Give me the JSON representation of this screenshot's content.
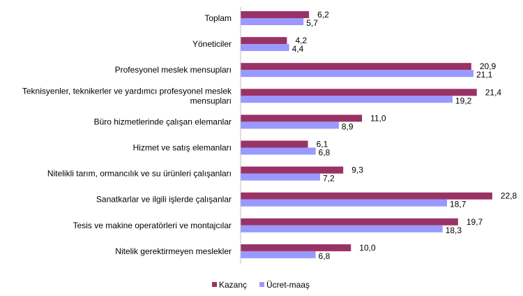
{
  "chart_data": {
    "type": "bar",
    "orientation": "horizontal",
    "categories": [
      "Toplam",
      "Yöneticiler",
      "Profesyonel meslek mensupları",
      "Teknisyenler, teknikerler ve yardımcı profesyonel meslek mensupları",
      "Büro hizmetlerinde çalışan elemanlar",
      "Hizmet ve satış elemanları",
      "Nitelikli tarım, ormancılık ve su ürünleri çalışanları",
      "Sanatkarlar ve ilgili işlerde çalışanlar",
      "Tesis ve makine operatörleri ve montajcılar",
      "Nitelik gerektirmeyen meslekler"
    ],
    "category_lines": {
      "3": [
        "Teknisyenler, teknikerler ve yardımcı profesyonel meslek",
        "mensupları"
      ]
    },
    "series": [
      {
        "name": "Kazanç",
        "color": "#993366",
        "values": [
          6.2,
          4.2,
          20.9,
          21.4,
          11.0,
          6.1,
          9.3,
          22.8,
          19.7,
          10.0
        ],
        "labels": [
          "6,2",
          "4,2",
          "20,9",
          "21,4",
          "11,0",
          "6,1",
          "9,3",
          "22,8",
          "19,7",
          "10,0"
        ]
      },
      {
        "name": "Ücret-maaş",
        "color": "#9999FF",
        "values": [
          5.7,
          4.4,
          21.1,
          19.2,
          8.9,
          6.8,
          7.2,
          18.7,
          18.3,
          6.8
        ],
        "labels": [
          "5,7",
          "4,4",
          "21,1",
          "19,2",
          "8,9",
          "6,8",
          "7,2",
          "18,7",
          "18,3",
          "6,8"
        ]
      }
    ],
    "xlim": [
      0,
      25
    ],
    "grid": false,
    "legend": "bottom"
  }
}
